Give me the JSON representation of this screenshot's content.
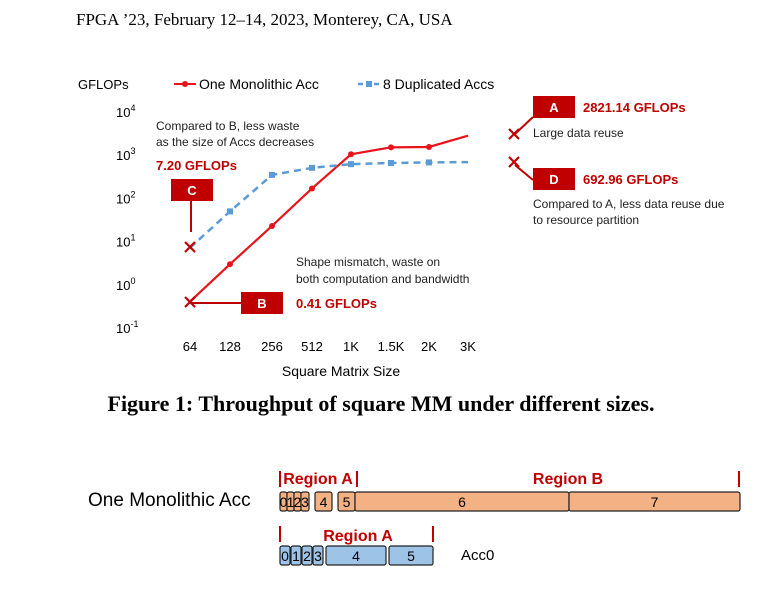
{
  "header": "FPGA ’23, February 12–14, 2023, Monterey, CA, USA",
  "caption": "Figure 1: Throughput of square MM under different sizes.",
  "chart_data": {
    "type": "line",
    "ylabel": "GFLOPs",
    "xlabel": "Square Matrix Size",
    "yscale": "log",
    "ylim": [
      0.1,
      10000
    ],
    "categories": [
      "64",
      "128",
      "256",
      "512",
      "1K",
      "1.5K",
      "2K",
      "3K"
    ],
    "ytick_labels": [
      {
        "base": "10",
        "exp": "4"
      },
      {
        "base": "10",
        "exp": "3"
      },
      {
        "base": "10",
        "exp": "2"
      },
      {
        "base": "10",
        "exp": "1"
      },
      {
        "base": "10",
        "exp": "0"
      },
      {
        "base": "10",
        "exp": "-1"
      }
    ],
    "grid": false,
    "legend_position": "top",
    "series": [
      {
        "name": "One Monolithic Acc",
        "color": "#e8141c",
        "dash": false,
        "values": [
          0.41,
          3.0,
          23,
          170,
          1050,
          1520,
          1550,
          2821.14
        ]
      },
      {
        "name": "8 Duplicated Accs",
        "color": "#5b9bd5",
        "dash": true,
        "values": [
          7.2,
          50,
          350,
          510,
          620,
          660,
          680,
          692.96
        ]
      }
    ],
    "annotations": {
      "A": {
        "tag": "A",
        "value": "2821.14 GFLOPs",
        "note": [
          "Large data reuse"
        ]
      },
      "B": {
        "tag": "B",
        "value": "0.41 GFLOPs",
        "note": [
          "Shape mismatch, waste on",
          "both computation and bandwidth"
        ]
      },
      "C": {
        "tag": "C",
        "value": "7.20 GFLOPs",
        "note": [
          "Compared to B, less waste",
          "as the size of Accs decreases"
        ]
      },
      "D": {
        "tag": "D",
        "value": "692.96 GFLOPs",
        "note": [
          "Compared to A, less data reuse due",
          "to resource partition"
        ]
      }
    },
    "colors": {
      "tag_box": "#c00000",
      "tag_text": "#ffffff",
      "value_text": "#c00000",
      "cross": "#c00000"
    }
  },
  "diagram": {
    "row1_label": "One Monolithic Acc",
    "row1_region_a": "Region A",
    "row1_region_b": "Region B",
    "row1_cells": [
      "0",
      "1",
      "2",
      "3",
      "4",
      "5",
      "6",
      "7"
    ],
    "row1_color": "#f4b183",
    "row2_region_a": "Region A",
    "row2_cells": [
      "0",
      "1",
      "2",
      "3",
      "4",
      "5"
    ],
    "row2_color": "#9dc3e6",
    "row2_label": "Acc0",
    "region_label_color": "#c00000"
  }
}
